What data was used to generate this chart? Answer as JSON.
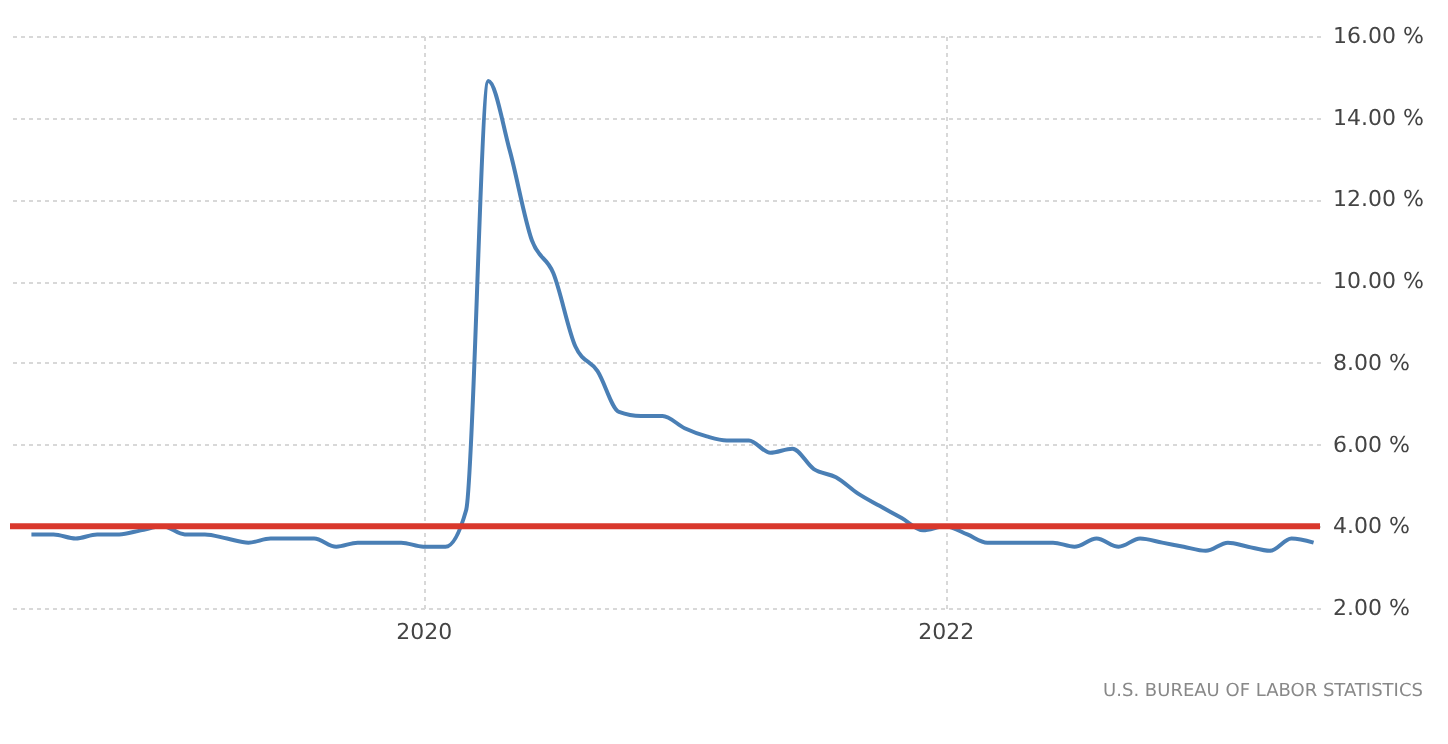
{
  "chart_data": {
    "type": "line",
    "x": [
      "2018-07",
      "2018-08",
      "2018-09",
      "2018-10",
      "2018-11",
      "2018-12",
      "2019-01",
      "2019-02",
      "2019-03",
      "2019-04",
      "2019-05",
      "2019-06",
      "2019-07",
      "2019-08",
      "2019-09",
      "2019-10",
      "2019-11",
      "2019-12",
      "2020-01",
      "2020-02",
      "2020-03",
      "2020-04",
      "2020-05",
      "2020-06",
      "2020-07",
      "2020-08",
      "2020-09",
      "2020-10",
      "2020-11",
      "2020-12",
      "2021-01",
      "2021-02",
      "2021-03",
      "2021-04",
      "2021-05",
      "2021-06",
      "2021-07",
      "2021-08",
      "2021-09",
      "2021-10",
      "2021-11",
      "2021-12",
      "2022-01",
      "2022-02",
      "2022-03",
      "2022-04",
      "2022-05",
      "2022-06",
      "2022-07",
      "2022-08",
      "2022-09",
      "2022-10",
      "2022-11",
      "2022-12",
      "2023-01",
      "2023-02",
      "2023-03",
      "2023-04",
      "2023-05",
      "2023-06"
    ],
    "series": [
      {
        "color": "#4a7fb5",
        "values": [
          3.8,
          3.8,
          3.7,
          3.8,
          3.8,
          3.9,
          4.0,
          3.8,
          3.8,
          3.7,
          3.6,
          3.7,
          3.7,
          3.7,
          3.5,
          3.6,
          3.6,
          3.6,
          3.5,
          3.5,
          4.4,
          14.9,
          13.2,
          11.0,
          10.2,
          8.4,
          7.8,
          6.8,
          6.7,
          6.7,
          6.4,
          6.2,
          6.1,
          6.1,
          5.8,
          5.9,
          5.4,
          5.2,
          4.8,
          4.5,
          4.2,
          3.9,
          4.0,
          3.8,
          3.6,
          3.6,
          3.6,
          3.6,
          3.5,
          3.7,
          3.5,
          3.7,
          3.6,
          3.5,
          3.4,
          3.6,
          3.5,
          3.4,
          3.7,
          3.6
        ]
      }
    ],
    "xlim": [
      "2018-06-01",
      "2023-06-10"
    ],
    "xticks": [
      {
        "value": "2020-01-01",
        "label": "2020"
      },
      {
        "value": "2022-01-01",
        "label": "2022"
      }
    ],
    "ylim": [
      2,
      16
    ],
    "yticks": [
      {
        "value": 2,
        "label": "2.00 %"
      },
      {
        "value": 4,
        "label": "4.00 %"
      },
      {
        "value": 6,
        "label": "6.00 %"
      },
      {
        "value": 8,
        "label": "8.00 %"
      },
      {
        "value": 10,
        "label": "10.00 %"
      },
      {
        "value": 12,
        "label": "12.00 %"
      },
      {
        "value": 14,
        "label": "14.00 %"
      },
      {
        "value": 16,
        "label": "16.00 %"
      }
    ],
    "ref_lines": [
      {
        "axis": "y",
        "value": 4,
        "color": "#d9382c"
      }
    ],
    "grid": true,
    "annotations": [
      "U.S. BUREAU OF LABOR STATISTICS"
    ]
  }
}
